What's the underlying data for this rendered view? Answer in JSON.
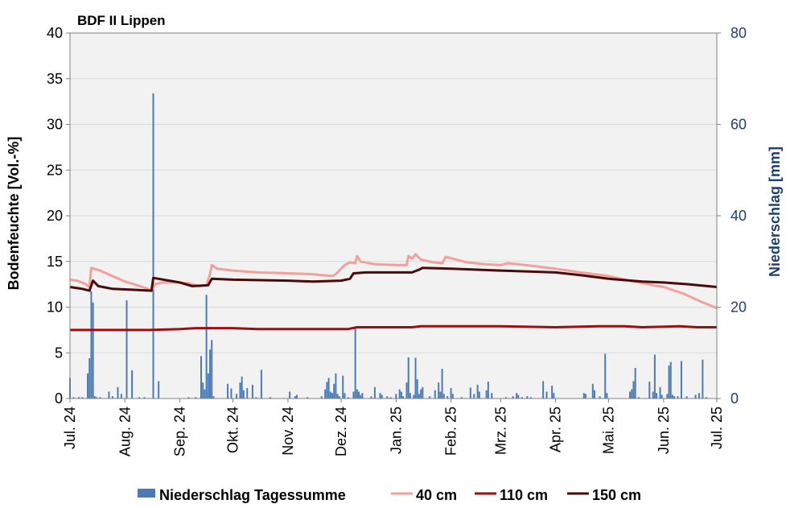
{
  "chart_data": {
    "type": "bar+line",
    "title": "BDF II Lippen",
    "ylabel_left": "Bodenfeuchte [Vol.-%]",
    "ylabel_right": "Niederschlag [mm]",
    "ylim_left": [
      0,
      40
    ],
    "ylim_right": [
      0,
      80
    ],
    "yticks_left": [
      "0",
      "5",
      "10",
      "15",
      "20",
      "25",
      "30",
      "35",
      "40"
    ],
    "yticks_right": [
      "0",
      "20",
      "40",
      "60",
      "80"
    ],
    "x_range": [
      "2024-07-01",
      "2025-07-01"
    ],
    "x_ticks": [
      {
        "label": "Jul. 24",
        "date": "2024-07-01"
      },
      {
        "label": "Aug. 24",
        "date": "2024-08-01"
      },
      {
        "label": "Sep. 24",
        "date": "2024-09-01"
      },
      {
        "label": "Okt. 24",
        "date": "2024-10-01"
      },
      {
        "label": "Nov. 24",
        "date": "2024-11-01"
      },
      {
        "label": "Dez. 24",
        "date": "2024-12-01"
      },
      {
        "label": "Jan. 25",
        "date": "2025-01-01"
      },
      {
        "label": "Feb. 25",
        "date": "2025-02-01"
      },
      {
        "label": "Mrz. 25",
        "date": "2025-03-01"
      },
      {
        "label": "Apr. 25",
        "date": "2025-04-01"
      },
      {
        "label": "Mai. 25",
        "date": "2025-05-01"
      },
      {
        "label": "Jun. 25",
        "date": "2025-06-01"
      },
      {
        "label": "Jul. 25",
        "date": "2025-07-01"
      }
    ],
    "grid": true,
    "legend_position": "bottom",
    "colors": {
      "plot_bg": "#f2f2f2",
      "grid": "#d9d9d9",
      "precip": "#4a7ab5",
      "40cm": "#f2a09c",
      "110cm": "#9b0f0f",
      "150cm": "#4a0a0a",
      "right_axis": "#1f3f6e"
    },
    "precipitation": {
      "name": "Niederschlag Tagessumme",
      "axis": "right",
      "points": [
        [
          "2024-07-01",
          4.5
        ],
        [
          "2024-07-03",
          0.3
        ],
        [
          "2024-07-06",
          0.3
        ],
        [
          "2024-07-08",
          0.3
        ],
        [
          "2024-07-11",
          5.5
        ],
        [
          "2024-07-12",
          8.8
        ],
        [
          "2024-07-13",
          23.5
        ],
        [
          "2024-07-14",
          21
        ],
        [
          "2024-07-15",
          0.5
        ],
        [
          "2024-07-16",
          0.3
        ],
        [
          "2024-07-18",
          0.3
        ],
        [
          "2024-07-23",
          1.5
        ],
        [
          "2024-07-25",
          0.5
        ],
        [
          "2024-07-28",
          2.5
        ],
        [
          "2024-07-30",
          1
        ],
        [
          "2024-08-02",
          21.5
        ],
        [
          "2024-08-05",
          6.2
        ],
        [
          "2024-08-09",
          0.3
        ],
        [
          "2024-08-12",
          0.3
        ],
        [
          "2024-08-17",
          66.8
        ],
        [
          "2024-08-20",
          3.8
        ],
        [
          "2024-09-06",
          0.3
        ],
        [
          "2024-09-10",
          0.3
        ],
        [
          "2024-09-13",
          9.3
        ],
        [
          "2024-09-14",
          3.5
        ],
        [
          "2024-09-15",
          2
        ],
        [
          "2024-09-16",
          22.7
        ],
        [
          "2024-09-17",
          5.5
        ],
        [
          "2024-09-18",
          10.7
        ],
        [
          "2024-09-19",
          12.8
        ],
        [
          "2024-09-20",
          0.5
        ],
        [
          "2024-09-28",
          3.2
        ],
        [
          "2024-09-30",
          2.2
        ],
        [
          "2024-10-03",
          1
        ],
        [
          "2024-10-05",
          3.5
        ],
        [
          "2024-10-06",
          4.8
        ],
        [
          "2024-10-07",
          1.8
        ],
        [
          "2024-10-09",
          2.3
        ],
        [
          "2024-10-12",
          3
        ],
        [
          "2024-10-14",
          0.3
        ],
        [
          "2024-10-17",
          6.3
        ],
        [
          "2024-10-22",
          0.3
        ],
        [
          "2024-11-02",
          1.5
        ],
        [
          "2024-11-05",
          0.5
        ],
        [
          "2024-11-06",
          0.8
        ],
        [
          "2024-11-12",
          0.3
        ],
        [
          "2024-11-20",
          0.5
        ],
        [
          "2024-11-22",
          2
        ],
        [
          "2024-11-23",
          3.6
        ],
        [
          "2024-11-24",
          4.5
        ],
        [
          "2024-11-25",
          1.5
        ],
        [
          "2024-11-26",
          1.2
        ],
        [
          "2024-11-27",
          3.2
        ],
        [
          "2024-11-28",
          5.5
        ],
        [
          "2024-11-29",
          1
        ],
        [
          "2024-11-30",
          0.5
        ],
        [
          "2024-12-02",
          5
        ],
        [
          "2024-12-03",
          1.2
        ],
        [
          "2024-12-05",
          0.3
        ],
        [
          "2024-12-08",
          1.5
        ],
        [
          "2024-12-09",
          15.3
        ],
        [
          "2024-12-10",
          2
        ],
        [
          "2024-12-11",
          1.5
        ],
        [
          "2024-12-12",
          0.8
        ],
        [
          "2024-12-13",
          1.2
        ],
        [
          "2024-12-18",
          0.5
        ],
        [
          "2024-12-20",
          2.5
        ],
        [
          "2024-12-23",
          1.2
        ],
        [
          "2024-12-24",
          0.8
        ],
        [
          "2024-12-27",
          0.5
        ],
        [
          "2024-12-29",
          0.3
        ],
        [
          "2025-01-01",
          1
        ],
        [
          "2025-01-03",
          2
        ],
        [
          "2025-01-04",
          1.5
        ],
        [
          "2025-01-05",
          0.5
        ],
        [
          "2025-01-07",
          3.5
        ],
        [
          "2025-01-08",
          9
        ],
        [
          "2025-01-09",
          1.2
        ],
        [
          "2025-01-11",
          0.8
        ],
        [
          "2025-01-12",
          8.9
        ],
        [
          "2025-01-13",
          4.2
        ],
        [
          "2025-01-14",
          1
        ],
        [
          "2025-01-15",
          2
        ],
        [
          "2025-01-16",
          2.5
        ],
        [
          "2025-01-20",
          0.5
        ],
        [
          "2025-01-23",
          1.8
        ],
        [
          "2025-01-25",
          3.5
        ],
        [
          "2025-01-26",
          1.5
        ],
        [
          "2025-01-27",
          6.5
        ],
        [
          "2025-01-28",
          1
        ],
        [
          "2025-01-30",
          0.5
        ],
        [
          "2025-02-01",
          2.3
        ],
        [
          "2025-02-02",
          1
        ],
        [
          "2025-02-07",
          0.3
        ],
        [
          "2025-02-12",
          2.4
        ],
        [
          "2025-02-14",
          1
        ],
        [
          "2025-02-16",
          3
        ],
        [
          "2025-02-17",
          1.5
        ],
        [
          "2025-02-21",
          1.8
        ],
        [
          "2025-02-22",
          3.7
        ],
        [
          "2025-02-24",
          1.2
        ],
        [
          "2025-03-04",
          0.3
        ],
        [
          "2025-03-08",
          0.5
        ],
        [
          "2025-03-10",
          1.2
        ],
        [
          "2025-03-11",
          0.8
        ],
        [
          "2025-03-13",
          0.3
        ],
        [
          "2025-03-16",
          0.5
        ],
        [
          "2025-03-18",
          0.3
        ],
        [
          "2025-03-25",
          3.8
        ],
        [
          "2025-03-27",
          1.5
        ],
        [
          "2025-03-30",
          2.8
        ],
        [
          "2025-03-31",
          1.2
        ],
        [
          "2025-04-17",
          1.2
        ],
        [
          "2025-04-18",
          1
        ],
        [
          "2025-04-22",
          3.2
        ],
        [
          "2025-04-23",
          1.8
        ],
        [
          "2025-04-26",
          0.5
        ],
        [
          "2025-04-29",
          9.8
        ],
        [
          "2025-04-30",
          1.2
        ],
        [
          "2025-05-13",
          1.5
        ],
        [
          "2025-05-14",
          2
        ],
        [
          "2025-05-15",
          3.8
        ],
        [
          "2025-05-16",
          6.7
        ],
        [
          "2025-05-18",
          0.3
        ],
        [
          "2025-05-24",
          3.7
        ],
        [
          "2025-05-26",
          1.5
        ],
        [
          "2025-05-27",
          9.6
        ],
        [
          "2025-05-28",
          1.2
        ],
        [
          "2025-05-30",
          2.5
        ],
        [
          "2025-05-31",
          0.8
        ],
        [
          "2025-06-03",
          1
        ],
        [
          "2025-06-04",
          7.2
        ],
        [
          "2025-06-05",
          8
        ],
        [
          "2025-06-06",
          0.8
        ],
        [
          "2025-06-07",
          0.5
        ],
        [
          "2025-06-09",
          0.5
        ],
        [
          "2025-06-11",
          8.2
        ],
        [
          "2025-06-14",
          0.5
        ],
        [
          "2025-06-19",
          0.8
        ],
        [
          "2025-06-21",
          1.2
        ],
        [
          "2025-06-23",
          8.5
        ],
        [
          "2025-06-25",
          0.3
        ]
      ]
    },
    "series": [
      {
        "name": "40 cm",
        "axis": "left",
        "points": [
          [
            "2024-07-01",
            13.0
          ],
          [
            "2024-07-05",
            12.9
          ],
          [
            "2024-07-09",
            12.6
          ],
          [
            "2024-07-12",
            12.2
          ],
          [
            "2024-07-13",
            14.3
          ],
          [
            "2024-07-18",
            14.0
          ],
          [
            "2024-07-25",
            13.4
          ],
          [
            "2024-08-01",
            12.8
          ],
          [
            "2024-08-08",
            12.4
          ],
          [
            "2024-08-14",
            12.0
          ],
          [
            "2024-08-16",
            11.8
          ],
          [
            "2024-08-18",
            12.5
          ],
          [
            "2024-08-22",
            12.7
          ],
          [
            "2024-09-01",
            12.7
          ],
          [
            "2024-09-06",
            12.6
          ],
          [
            "2024-09-12",
            12.3
          ],
          [
            "2024-09-16",
            12.4
          ],
          [
            "2024-09-18",
            13.6
          ],
          [
            "2024-09-19",
            14.6
          ],
          [
            "2024-09-22",
            14.2
          ],
          [
            "2024-10-01",
            14.0
          ],
          [
            "2024-10-15",
            13.8
          ],
          [
            "2024-11-01",
            13.7
          ],
          [
            "2024-11-15",
            13.6
          ],
          [
            "2024-11-20",
            13.5
          ],
          [
            "2024-11-26",
            13.4
          ],
          [
            "2024-11-28",
            13.6
          ],
          [
            "2024-12-03",
            14.6
          ],
          [
            "2024-12-06",
            14.9
          ],
          [
            "2024-12-09",
            14.8
          ],
          [
            "2024-12-10",
            15.6
          ],
          [
            "2024-12-12",
            15.0
          ],
          [
            "2024-12-20",
            14.7
          ],
          [
            "2025-01-01",
            14.6
          ],
          [
            "2025-01-07",
            14.6
          ],
          [
            "2025-01-08",
            15.6
          ],
          [
            "2025-01-10",
            15.3
          ],
          [
            "2025-01-12",
            15.8
          ],
          [
            "2025-01-15",
            15.2
          ],
          [
            "2025-01-22",
            14.9
          ],
          [
            "2025-01-27",
            14.8
          ],
          [
            "2025-01-29",
            15.5
          ],
          [
            "2025-02-02",
            15.3
          ],
          [
            "2025-02-10",
            14.9
          ],
          [
            "2025-02-20",
            14.7
          ],
          [
            "2025-03-01",
            14.6
          ],
          [
            "2025-03-05",
            14.8
          ],
          [
            "2025-03-15",
            14.6
          ],
          [
            "2025-04-01",
            14.2
          ],
          [
            "2025-04-15",
            13.8
          ],
          [
            "2025-05-01",
            13.4
          ],
          [
            "2025-05-15",
            12.8
          ],
          [
            "2025-06-01",
            12.2
          ],
          [
            "2025-06-12",
            11.5
          ],
          [
            "2025-06-22",
            10.6
          ],
          [
            "2025-07-01",
            9.9
          ]
        ]
      },
      {
        "name": "110 cm",
        "axis": "left",
        "points": [
          [
            "2024-07-01",
            7.5
          ],
          [
            "2024-08-15",
            7.5
          ],
          [
            "2024-09-01",
            7.6
          ],
          [
            "2024-09-10",
            7.7
          ],
          [
            "2024-10-01",
            7.7
          ],
          [
            "2024-10-15",
            7.6
          ],
          [
            "2024-11-15",
            7.6
          ],
          [
            "2024-12-05",
            7.6
          ],
          [
            "2024-12-10",
            7.8
          ],
          [
            "2025-01-10",
            7.8
          ],
          [
            "2025-01-15",
            7.9
          ],
          [
            "2025-03-01",
            7.9
          ],
          [
            "2025-04-01",
            7.8
          ],
          [
            "2025-04-25",
            7.9
          ],
          [
            "2025-05-10",
            7.9
          ],
          [
            "2025-05-20",
            7.8
          ],
          [
            "2025-06-10",
            7.9
          ],
          [
            "2025-06-20",
            7.8
          ],
          [
            "2025-07-01",
            7.8
          ]
        ]
      },
      {
        "name": "150 cm",
        "axis": "left",
        "points": [
          [
            "2024-07-01",
            12.2
          ],
          [
            "2024-07-08",
            12.0
          ],
          [
            "2024-07-12",
            11.8
          ],
          [
            "2024-07-14",
            12.9
          ],
          [
            "2024-07-17",
            12.3
          ],
          [
            "2024-07-25",
            12.0
          ],
          [
            "2024-08-05",
            11.9
          ],
          [
            "2024-08-16",
            11.8
          ],
          [
            "2024-08-17",
            13.2
          ],
          [
            "2024-08-20",
            13.1
          ],
          [
            "2024-09-01",
            12.7
          ],
          [
            "2024-09-08",
            12.3
          ],
          [
            "2024-09-17",
            12.4
          ],
          [
            "2024-09-19",
            13.1
          ],
          [
            "2024-10-01",
            13.0
          ],
          [
            "2024-11-01",
            12.9
          ],
          [
            "2024-11-15",
            12.8
          ],
          [
            "2024-12-01",
            12.9
          ],
          [
            "2024-12-06",
            13.1
          ],
          [
            "2024-12-08",
            13.7
          ],
          [
            "2024-12-15",
            13.8
          ],
          [
            "2025-01-01",
            13.8
          ],
          [
            "2025-01-10",
            13.8
          ],
          [
            "2025-01-14",
            14.1
          ],
          [
            "2025-01-16",
            14.3
          ],
          [
            "2025-02-01",
            14.2
          ],
          [
            "2025-03-01",
            14.0
          ],
          [
            "2025-04-01",
            13.8
          ],
          [
            "2025-04-15",
            13.5
          ],
          [
            "2025-05-01",
            13.1
          ],
          [
            "2025-05-20",
            12.8
          ],
          [
            "2025-06-01",
            12.7
          ],
          [
            "2025-06-15",
            12.5
          ],
          [
            "2025-07-01",
            12.2
          ]
        ]
      }
    ]
  }
}
